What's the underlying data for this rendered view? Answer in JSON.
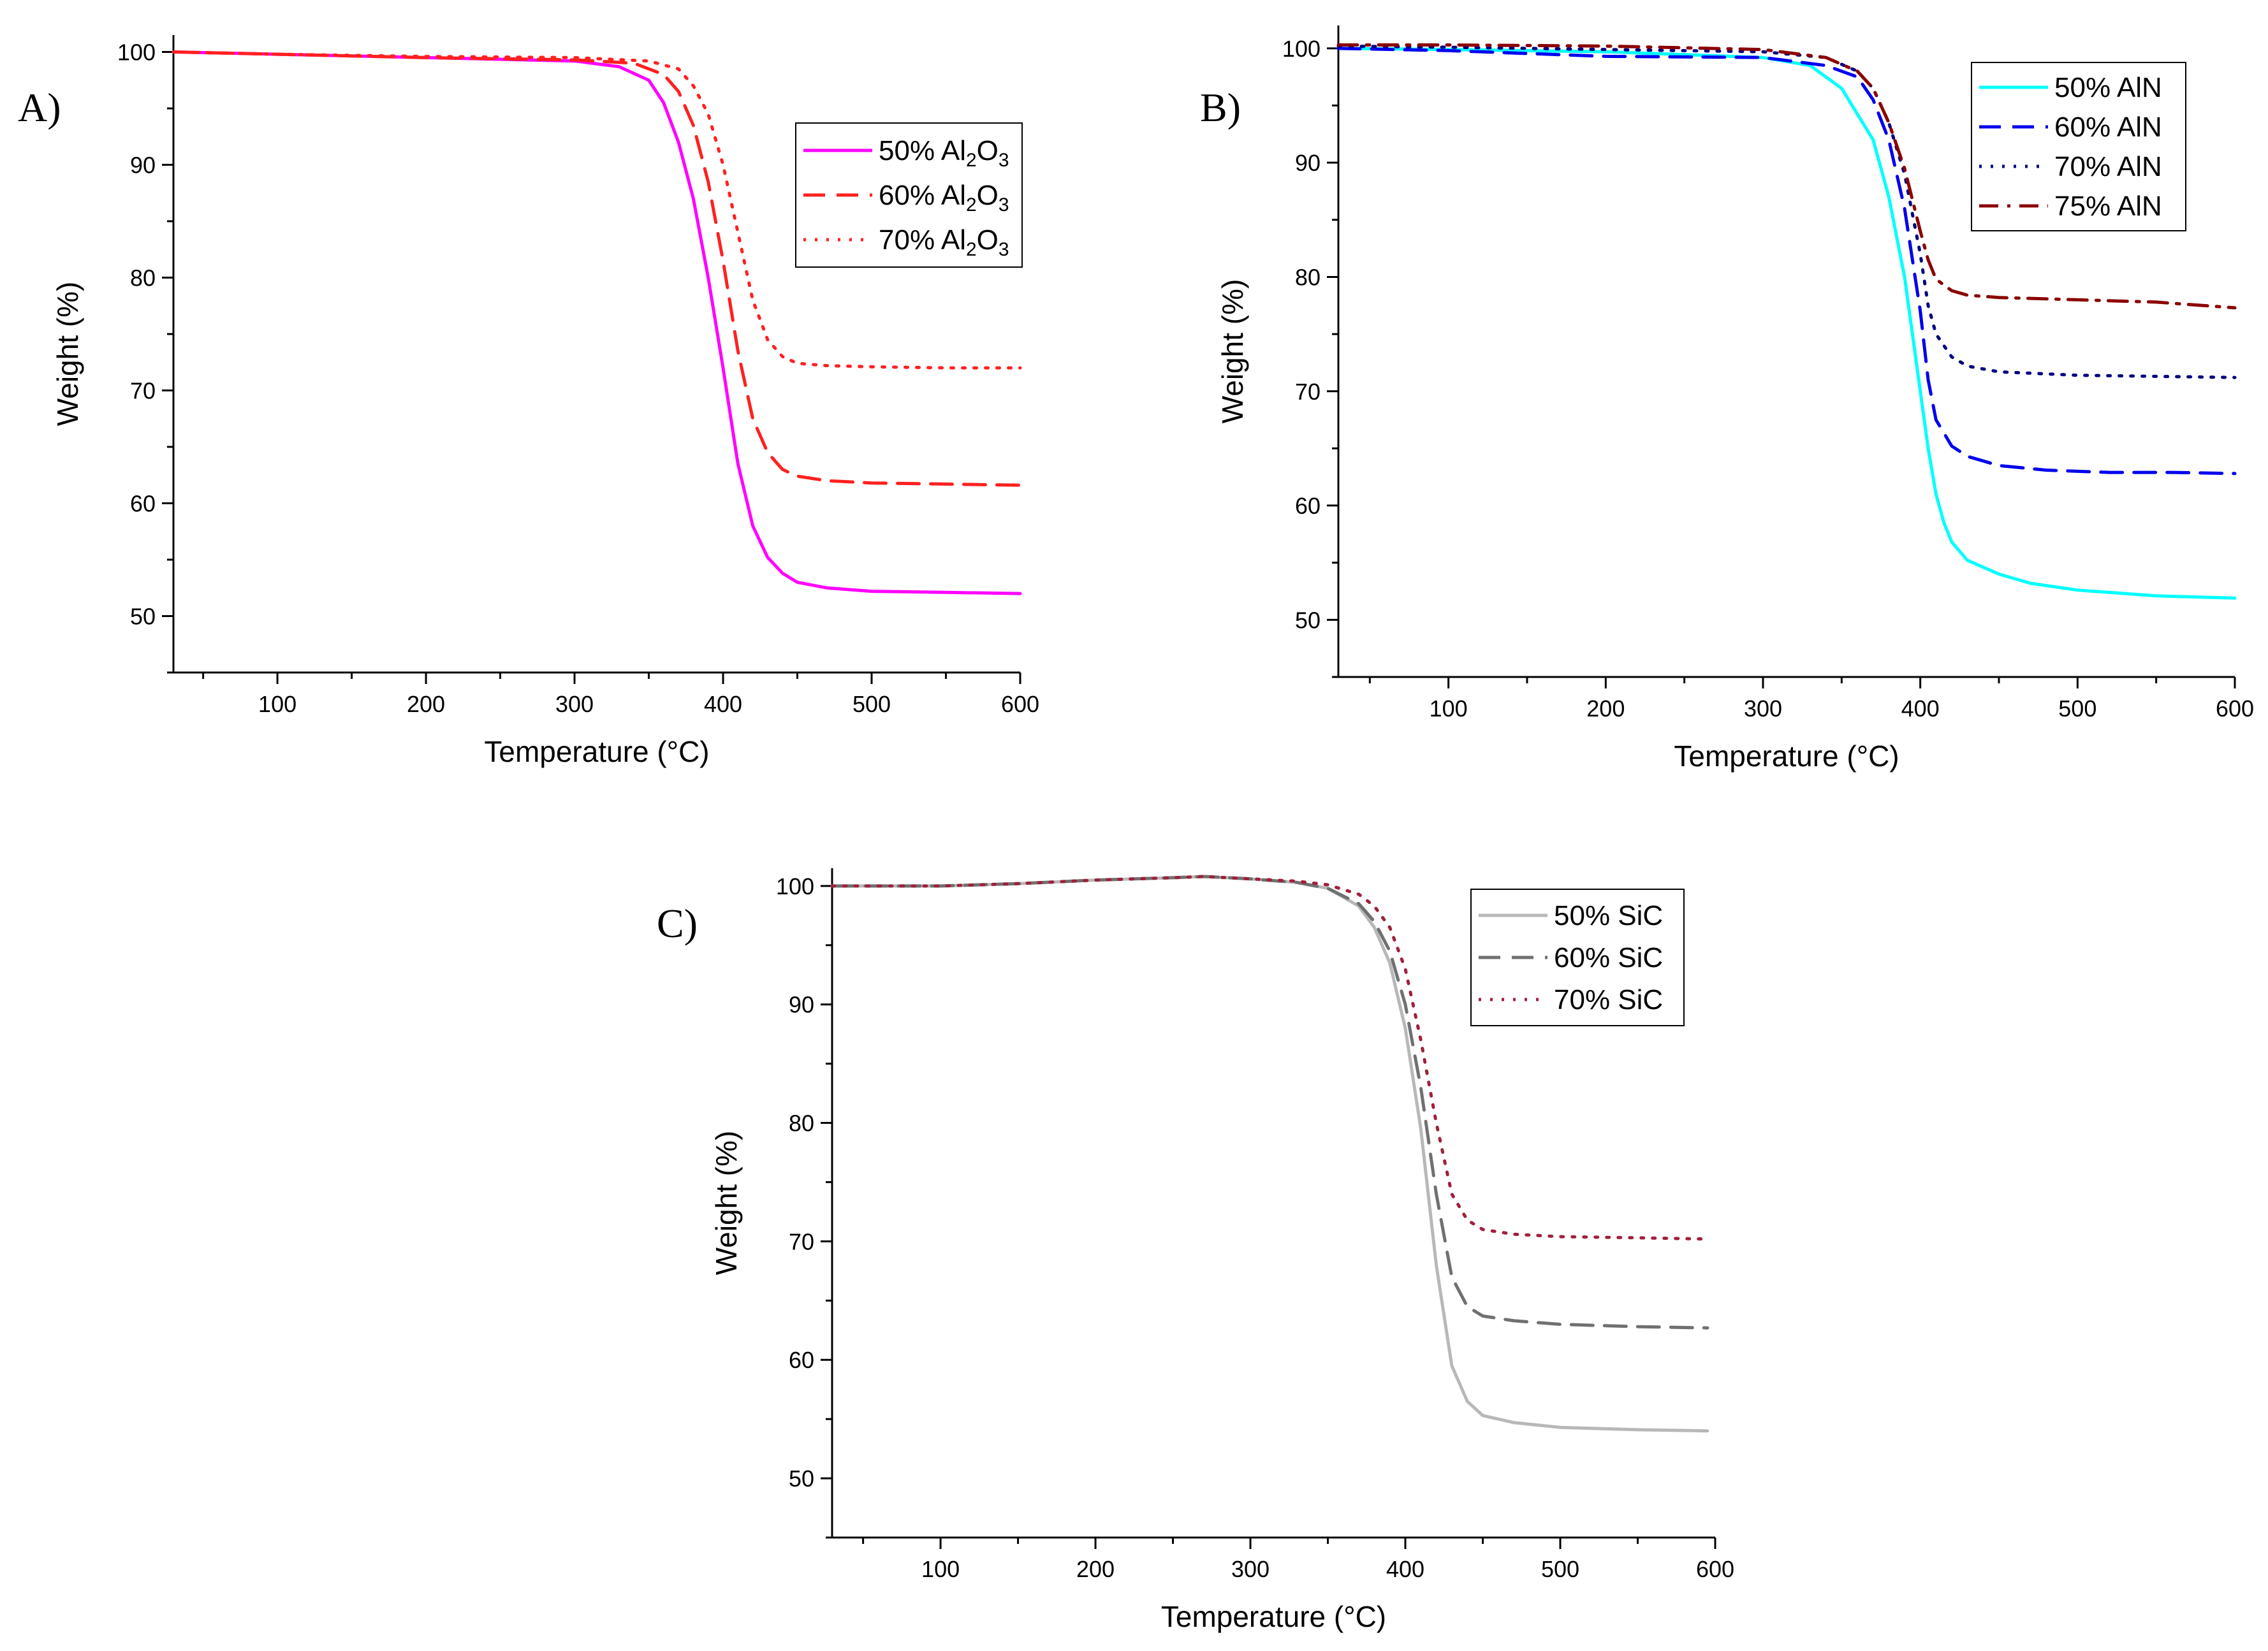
{
  "chart_data": [
    {
      "panel_label": "A)",
      "type": "line",
      "xlabel": "Temperature (°C)",
      "ylabel": "Weight (%)",
      "xlim": [
        30,
        600
      ],
      "ylim": [
        45,
        101.5
      ],
      "xticks": [
        100,
        200,
        300,
        400,
        500,
        600
      ],
      "yticks": [
        50,
        60,
        70,
        80,
        90,
        100
      ],
      "legend_position": "top-right",
      "series": [
        {
          "name": "50% Al",
          "name_sub1": "2",
          "name_mid": "O",
          "name_sub2": "3",
          "color": "#ff00ff",
          "dash": "solid",
          "x": [
            30,
            100,
            200,
            300,
            330,
            350,
            360,
            370,
            380,
            390,
            400,
            410,
            420,
            430,
            440,
            450,
            470,
            500,
            550,
            600
          ],
          "y": [
            100,
            99.8,
            99.5,
            99.2,
            98.7,
            97.5,
            95.5,
            92,
            87,
            80,
            72,
            63.5,
            58,
            55.2,
            53.8,
            53,
            52.5,
            52.2,
            52.1,
            52
          ]
        },
        {
          "name": "60% Al",
          "name_sub1": "2",
          "name_mid": "O",
          "name_sub2": "3",
          "color": "#ff2020",
          "dash": "dashed",
          "x": [
            30,
            100,
            200,
            300,
            340,
            360,
            370,
            380,
            390,
            400,
            410,
            420,
            430,
            440,
            450,
            470,
            500,
            550,
            600
          ],
          "y": [
            100,
            99.8,
            99.5,
            99.3,
            99,
            98,
            96.5,
            93.5,
            88.5,
            81.5,
            73.5,
            67.5,
            64.5,
            63,
            62.4,
            62,
            61.8,
            61.7,
            61.6
          ]
        },
        {
          "name": "70% Al",
          "name_sub1": "2",
          "name_mid": "O",
          "name_sub2": "3",
          "color": "#ff2020",
          "dash": "dotted",
          "x": [
            30,
            100,
            200,
            300,
            350,
            370,
            380,
            390,
            400,
            410,
            420,
            430,
            440,
            450,
            470,
            500,
            550,
            600
          ],
          "y": [
            100,
            99.8,
            99.6,
            99.5,
            99.2,
            98.5,
            97,
            94.5,
            90,
            84,
            78,
            74.5,
            73,
            72.4,
            72.2,
            72.1,
            72,
            72
          ]
        }
      ]
    },
    {
      "panel_label": "B)",
      "type": "line",
      "xlabel": "Temperature (°C)",
      "ylabel": "Weight (%)",
      "xlim": [
        30,
        600
      ],
      "ylim": [
        45,
        102
      ],
      "xticks": [
        100,
        200,
        300,
        400,
        500,
        600
      ],
      "yticks": [
        50,
        60,
        70,
        80,
        90,
        100
      ],
      "legend_position": "top-right",
      "series": [
        {
          "name": "50% AlN",
          "color": "#00ffff",
          "dash": "solid",
          "x": [
            30,
            100,
            200,
            300,
            330,
            350,
            370,
            380,
            390,
            400,
            405,
            410,
            415,
            420,
            430,
            450,
            470,
            500,
            550,
            600
          ],
          "y": [
            100,
            99.9,
            99.7,
            99.2,
            98.5,
            96.5,
            92,
            87,
            80,
            70,
            65,
            61,
            58.5,
            56.8,
            55.2,
            54,
            53.2,
            52.6,
            52.1,
            51.9
          ]
        },
        {
          "name": "60% AlN",
          "color": "#0000ee",
          "dash": "dashed",
          "x": [
            30,
            100,
            200,
            300,
            340,
            360,
            370,
            380,
            390,
            400,
            405,
            410,
            420,
            430,
            450,
            480,
            520,
            560,
            600
          ],
          "y": [
            100,
            99.8,
            99.3,
            99.2,
            98.5,
            97.5,
            95.5,
            92,
            86,
            77,
            71,
            67.5,
            65.2,
            64.3,
            63.5,
            63.1,
            62.9,
            62.9,
            62.8
          ]
        },
        {
          "name": "70% AlN",
          "color": "#000080",
          "dash": "dotted",
          "x": [
            30,
            100,
            200,
            300,
            340,
            360,
            370,
            380,
            390,
            400,
            405,
            410,
            420,
            430,
            450,
            500,
            550,
            600
          ],
          "y": [
            100.2,
            100.1,
            99.9,
            99.7,
            99.2,
            98,
            96.5,
            93.5,
            89,
            82,
            77.5,
            75,
            73,
            72.2,
            71.7,
            71.4,
            71.3,
            71.2
          ]
        },
        {
          "name": "75% AlN",
          "color": "#8b0000",
          "dash": "dashdot",
          "x": [
            30,
            100,
            200,
            300,
            340,
            360,
            370,
            380,
            390,
            400,
            405,
            410,
            420,
            430,
            450,
            500,
            550,
            600
          ],
          "y": [
            100.3,
            100.3,
            100.2,
            99.9,
            99.2,
            98,
            96.5,
            93.5,
            89.5,
            84,
            81.5,
            79.8,
            78.8,
            78.4,
            78.2,
            78,
            77.8,
            77.3
          ]
        }
      ]
    },
    {
      "panel_label": "C)",
      "type": "line",
      "xlabel": "Temperature (°C)",
      "ylabel": "Weight (%)",
      "xlim": [
        30,
        600
      ],
      "ylim": [
        45,
        101.5
      ],
      "xticks": [
        100,
        200,
        300,
        400,
        500,
        600
      ],
      "yticks": [
        50,
        60,
        70,
        80,
        90,
        100
      ],
      "legend_position": "top-right",
      "series": [
        {
          "name": "50% SiC",
          "color": "#b8b8b8",
          "dash": "solid",
          "x": [
            30,
            100,
            150,
            200,
            250,
            270,
            300,
            330,
            350,
            370,
            380,
            390,
            400,
            410,
            420,
            430,
            440,
            450,
            470,
            500,
            550,
            595
          ],
          "y": [
            100,
            100,
            100.2,
            100.5,
            100.7,
            100.8,
            100.6,
            100.3,
            99.8,
            98.3,
            96.5,
            93.5,
            88,
            79.5,
            68,
            59.5,
            56.5,
            55.3,
            54.7,
            54.3,
            54.1,
            54
          ]
        },
        {
          "name": "60% SiC",
          "color": "#707070",
          "dash": "dashed",
          "x": [
            30,
            100,
            150,
            200,
            250,
            270,
            300,
            330,
            350,
            370,
            380,
            390,
            400,
            410,
            420,
            430,
            440,
            450,
            470,
            500,
            550,
            595
          ],
          "y": [
            100,
            100,
            100.2,
            100.5,
            100.7,
            100.8,
            100.6,
            100.3,
            99.8,
            98.5,
            97,
            94.5,
            90,
            83,
            74,
            67,
            64.5,
            63.7,
            63.3,
            63,
            62.8,
            62.7
          ]
        },
        {
          "name": "70% SiC",
          "color": "#a0203a",
          "dash": "dotted",
          "x": [
            30,
            100,
            150,
            200,
            250,
            270,
            300,
            330,
            350,
            370,
            380,
            390,
            400,
            410,
            420,
            430,
            440,
            450,
            470,
            500,
            550,
            595
          ],
          "y": [
            100,
            100,
            100.2,
            100.5,
            100.7,
            100.8,
            100.6,
            100.4,
            100.1,
            99.3,
            98.3,
            96.5,
            93,
            87,
            80,
            74,
            71.8,
            71,
            70.6,
            70.4,
            70.3,
            70.2
          ]
        }
      ]
    }
  ]
}
